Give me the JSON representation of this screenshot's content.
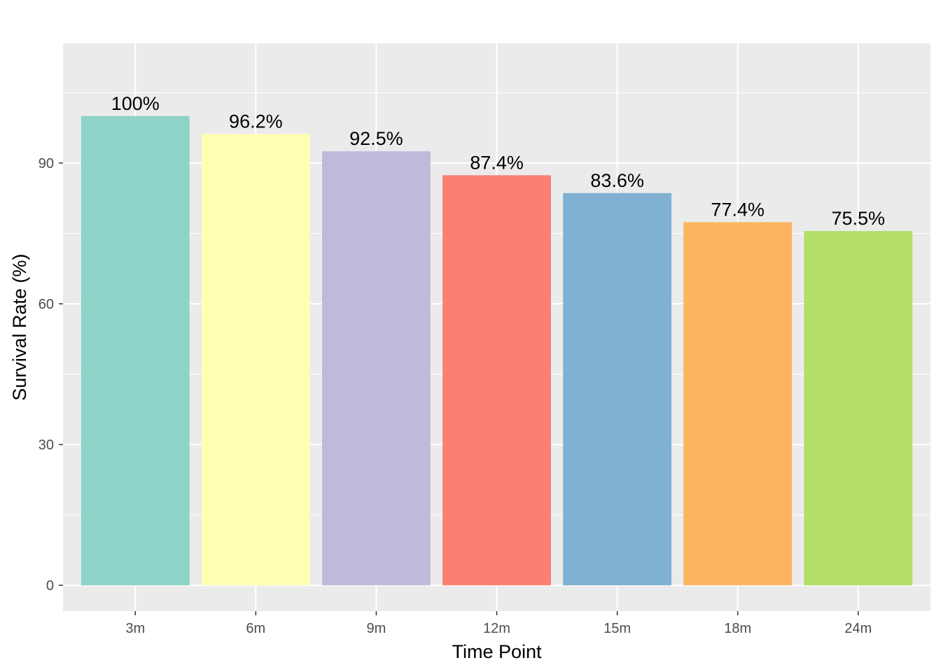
{
  "chart_data": {
    "type": "bar",
    "title": "",
    "xlabel": "Time Point",
    "ylabel": "Survival Rate (%)",
    "categories": [
      "3m",
      "6m",
      "9m",
      "12m",
      "15m",
      "18m",
      "24m"
    ],
    "values": [
      100,
      96.2,
      92.5,
      87.4,
      83.6,
      77.4,
      75.5
    ],
    "data_labels": [
      "100%",
      "96.2%",
      "92.5%",
      "87.4%",
      "83.6%",
      "77.4%",
      "75.5%"
    ],
    "colors": [
      "#8DD3C7",
      "#FFFFB3",
      "#BEBADA",
      "#FB8072",
      "#80B1D3",
      "#FDB462",
      "#B3DE69"
    ],
    "yticks": [
      0,
      30,
      60,
      90
    ],
    "ylim": [
      -5.5,
      115.5
    ],
    "grid": true,
    "legend": "none",
    "panel_background": "#EBEBEB",
    "grid_color": "#FFFFFF"
  }
}
